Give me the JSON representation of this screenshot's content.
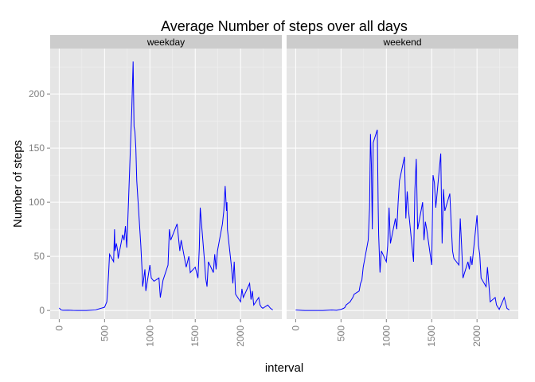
{
  "chart_data": {
    "type": "line",
    "title": "Average Number of steps over all days",
    "xlabel": "interval",
    "ylabel": "Number of steps",
    "xlim": [
      -100,
      2455
    ],
    "ylim": [
      -8,
      242
    ],
    "xticks": [
      0,
      500,
      1000,
      1500,
      2000
    ],
    "xtick_labels": [
      "0",
      "500",
      "1000",
      "1500",
      "2000"
    ],
    "yticks": [
      0,
      50,
      100,
      150,
      200
    ],
    "ytick_labels": [
      "0",
      "50",
      "100",
      "150",
      "200"
    ],
    "grid": true,
    "line_color": "#0000ff",
    "panels": [
      {
        "strip": "weekday",
        "series": [
          {
            "x": [
              0,
              20,
              40,
              100,
              150,
              200,
              300,
              400,
              420,
              500,
              525,
              535,
              545,
              555,
              600,
              610,
              615,
              630,
              645,
              650,
              700,
              715,
              730,
              745,
              755,
              800,
              815,
              825,
              835,
              845,
              855,
              900,
              915,
              920,
              930,
              945,
              955,
              1000,
              1015,
              1045,
              1100,
              1115,
              1145,
              1200,
              1215,
              1230,
              1300,
              1330,
              1345,
              1400,
              1430,
              1445,
              1500,
              1530,
              1545,
              1555,
              1600,
              1615,
              1630,
              1645,
              1700,
              1715,
              1730,
              1745,
              1800,
              1815,
              1830,
              1845,
              1850,
              1855,
              1900,
              1915,
              1930,
              1945,
              2000,
              2015,
              2030,
              2100,
              2115,
              2130,
              2145,
              2200,
              2215,
              2230,
              2245,
              2300,
              2330,
              2355
            ],
            "y": [
              2.3,
              0.5,
              0.2,
              0.3,
              0.1,
              0,
              0,
              0.5,
              1,
              3,
              8,
              20,
              35,
              52,
              45,
              75,
              55,
              62,
              55,
              48,
              70,
              65,
              78,
              58,
              80,
              185,
              230,
              170,
              165,
              150,
              120,
              60,
              35,
              22,
              28,
              38,
              18,
              42,
              30,
              27,
              30,
              12,
              28,
              42,
              75,
              65,
              80,
              55,
              65,
              40,
              50,
              35,
              40,
              30,
              58,
              95,
              48,
              30,
              22,
              45,
              35,
              52,
              38,
              55,
              80,
              92,
              115,
              92,
              100,
              75,
              40,
              25,
              45,
              15,
              8,
              20,
              12,
              25,
              10,
              18,
              5,
              12,
              5,
              3,
              2,
              5,
              2,
              0.5
            ]
          }
        ]
      },
      {
        "strip": "weekend",
        "series": [
          {
            "x": [
              0,
              100,
              200,
              300,
              400,
              450,
              500,
              530,
              545,
              555,
              600,
              615,
              630,
              645,
              700,
              715,
              730,
              745,
              800,
              815,
              825,
              835,
              845,
              855,
              900,
              910,
              915,
              930,
              945,
              1000,
              1015,
              1030,
              1045,
              1100,
              1115,
              1130,
              1145,
              1200,
              1215,
              1230,
              1245,
              1300,
              1315,
              1330,
              1345,
              1400,
              1415,
              1430,
              1445,
              1500,
              1515,
              1530,
              1545,
              1600,
              1615,
              1630,
              1645,
              1700,
              1715,
              1730,
              1745,
              1800,
              1815,
              1830,
              1845,
              1900,
              1915,
              1930,
              1945,
              2000,
              2015,
              2030,
              2045,
              2100,
              2115,
              2130,
              2145,
              2200,
              2215,
              2230,
              2245,
              2300,
              2330,
              2355
            ],
            "y": [
              0.5,
              0,
              0,
              0,
              0.5,
              0.2,
              1,
              2,
              3,
              5,
              8,
              10,
              12,
              15,
              18,
              25,
              28,
              40,
              65,
              95,
              163,
              135,
              75,
              155,
              167,
              95,
              70,
              35,
              55,
              45,
              60,
              95,
              62,
              85,
              75,
              100,
              120,
              142,
              85,
              110,
              92,
              45,
              112,
              140,
              75,
              100,
              65,
              82,
              75,
              42,
              125,
              118,
              95,
              145,
              62,
              112,
              92,
              108,
              80,
              55,
              48,
              42,
              85,
              60,
              30,
              45,
              38,
              50,
              42,
              88,
              60,
              52,
              30,
              22,
              40,
              25,
              8,
              12,
              5,
              3,
              1,
              12,
              2,
              0.5
            ]
          }
        ]
      }
    ]
  }
}
